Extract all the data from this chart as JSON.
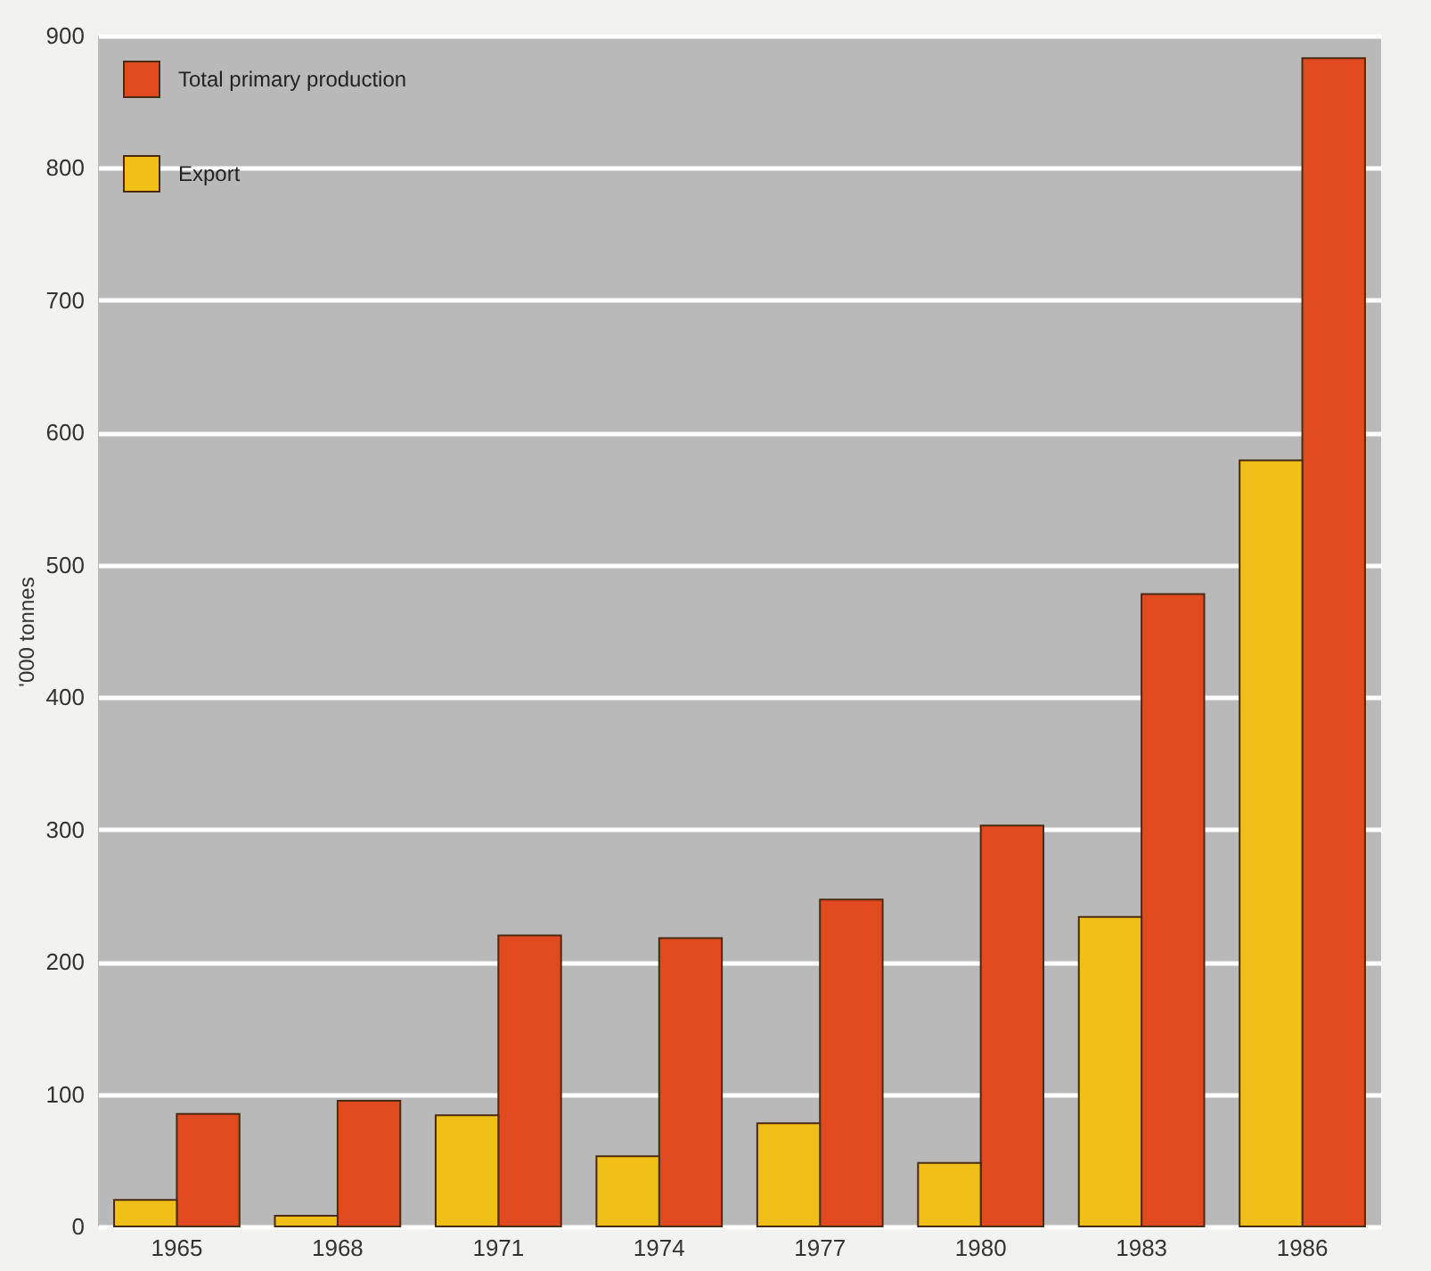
{
  "chart_data": {
    "type": "bar",
    "ylabel": "'000 tonnes",
    "categories": [
      "1965",
      "1968",
      "1971",
      "1974",
      "1977",
      "1980",
      "1983",
      "1986"
    ],
    "series": [
      {
        "name": "Total primary production",
        "color": "#e04a1e",
        "values": [
          85,
          95,
          220,
          218,
          247,
          303,
          478,
          883
        ]
      },
      {
        "name": "Export",
        "color": "#f0c018",
        "values": [
          20,
          8,
          84,
          53,
          78,
          48,
          234,
          579
        ]
      }
    ],
    "ylim": [
      0,
      900
    ],
    "yticks": [
      0,
      100,
      200,
      300,
      400,
      500,
      600,
      700,
      800,
      900
    ],
    "grid": "y",
    "legend": "top left"
  }
}
